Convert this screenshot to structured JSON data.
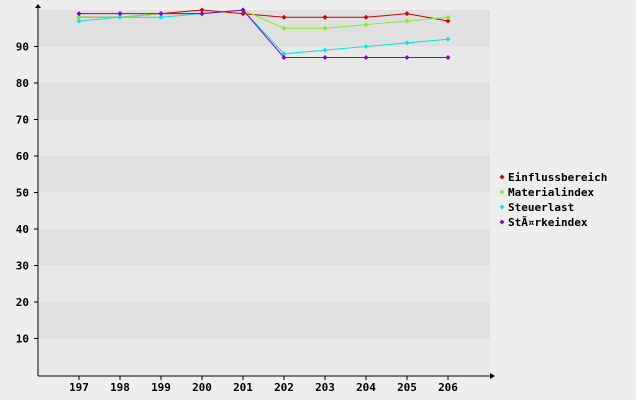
{
  "chart_data": {
    "type": "line",
    "title": "",
    "xlabel": "",
    "ylabel": "",
    "categories": [
      "197",
      "198",
      "199",
      "200",
      "201",
      "202",
      "203",
      "204",
      "205",
      "206"
    ],
    "ylim": [
      0,
      100
    ],
    "yticks": [
      "10",
      "20",
      "30",
      "40",
      "50",
      "60",
      "70",
      "80",
      "90"
    ],
    "grid": "horizontal bands",
    "legend_position": "right",
    "background_color": "#eeeeee",
    "band_colors": [
      "#e0e0e0",
      "#e8e8e8"
    ],
    "series": [
      {
        "name": "Einflussbereich",
        "color": "#cc0000",
        "values": [
          98,
          98,
          99,
          100,
          99,
          98,
          98,
          98,
          99,
          97
        ]
      },
      {
        "name": "Materialindex",
        "color": "#88ee22",
        "values": [
          98,
          98,
          99,
          99,
          100,
          95,
          95,
          96,
          97,
          98
        ]
      },
      {
        "name": "Steuerlast",
        "color": "#00e6e6",
        "values": [
          97,
          98,
          98,
          99,
          100,
          88,
          89,
          90,
          91,
          92
        ]
      },
      {
        "name": "StÃ¤rkeindex",
        "color": "#8800cc",
        "values": [
          99,
          99,
          99,
          99,
          100,
          87,
          87,
          87,
          87,
          87
        ]
      }
    ]
  }
}
